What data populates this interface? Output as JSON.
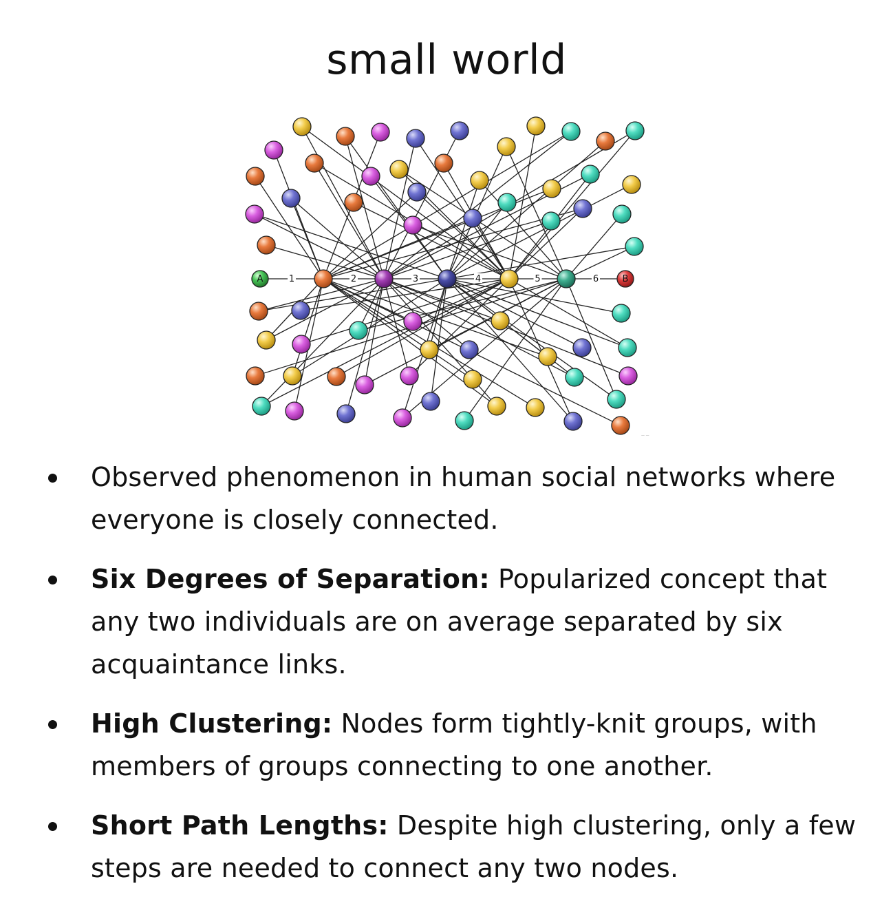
{
  "title": "small world",
  "diagram": {
    "start_label": "A",
    "end_label": "B",
    "step_labels": [
      "1",
      "2",
      "3",
      "4",
      "5",
      "6"
    ],
    "colors": {
      "orange": "#e87a3e",
      "magenta": "#d95fe0",
      "indigo": "#7073d2",
      "yellow": "#f2cc4b",
      "teal": "#4fdcc0",
      "green": "#48c458",
      "red": "#de3c3c"
    }
  },
  "bullets": [
    {
      "bold": "",
      "text": "Observed phenomenon in human social networks where everyone is closely connected."
    },
    {
      "bold": "Six Degrees of Separation:",
      "text": " Popularized concept that any two individuals are on average separated by six acquaintance links."
    },
    {
      "bold": "High Clustering:",
      "text": " Nodes form tightly-knit groups, with members of groups connecting to one another."
    },
    {
      "bold": "Short Path Lengths:",
      "text": " Despite high clustering, only a few steps are needed to connect any two nodes."
    }
  ]
}
